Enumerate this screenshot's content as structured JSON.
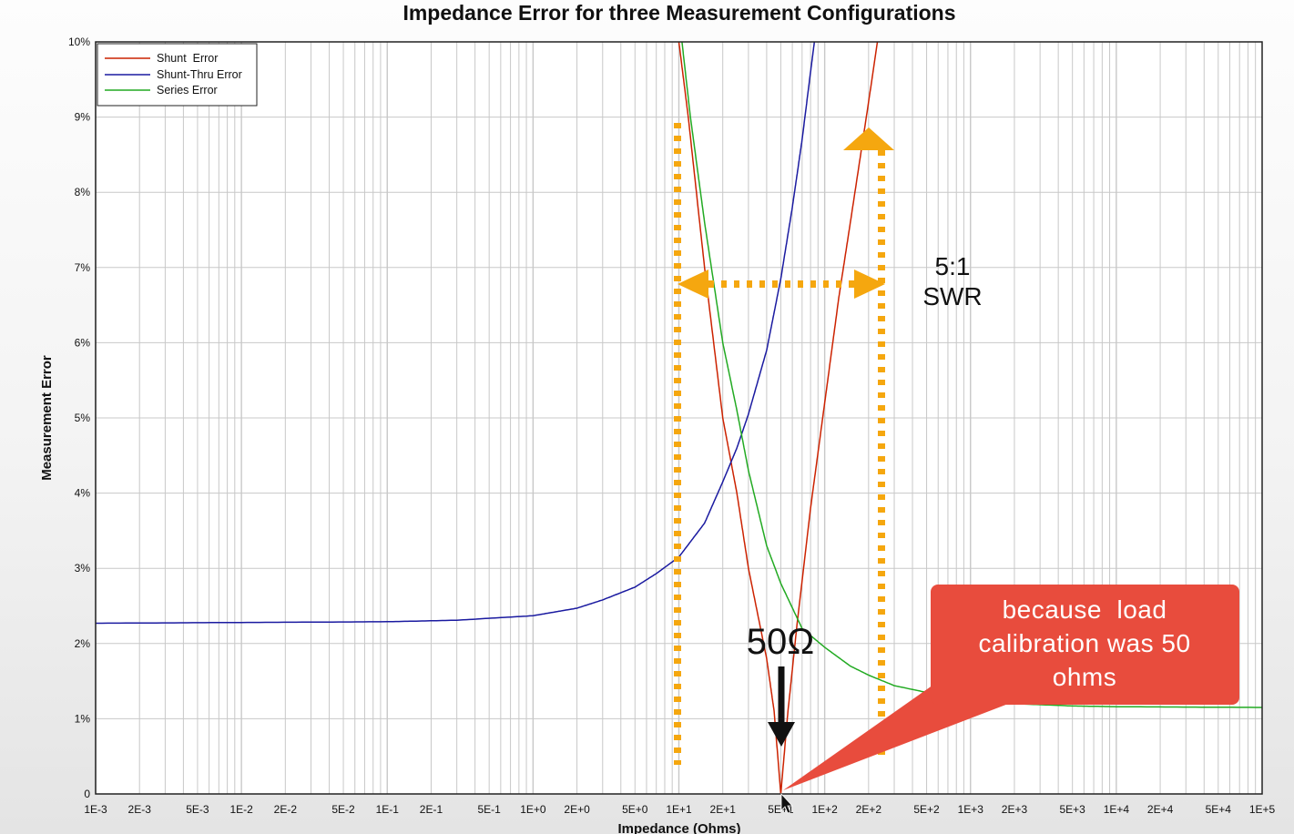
{
  "chart_data": {
    "type": "line",
    "title": "Impedance Error for three Measurement Configurations",
    "xlabel": "Impedance (Ohms)",
    "ylabel": "Measurement Error",
    "x_scale": "log",
    "xlim": [
      0.001,
      100000
    ],
    "ylim": [
      0,
      10
    ],
    "grid": true,
    "legend_position": "top-left",
    "x_tick_labels": [
      "1E-3",
      "2E-3",
      "5E-3",
      "1E-2",
      "2E-2",
      "5E-2",
      "1E-1",
      "2E-1",
      "5E-1",
      "1E+0",
      "2E+0",
      "5E+0",
      "1E+1",
      "2E+1",
      "5E+1",
      "1E+2",
      "2E+2",
      "5E+2",
      "1E+3",
      "2E+3",
      "5E+3",
      "1E+4",
      "2E+4",
      "5E+4",
      "1E+5"
    ],
    "y_tick_labels": [
      "0",
      "1%",
      "2%",
      "3%",
      "4%",
      "5%",
      "6%",
      "7%",
      "8%",
      "9%",
      "10%"
    ],
    "series": [
      {
        "name": "Shunt  Error",
        "color": "#cc2200",
        "points": [
          [
            10,
            10
          ],
          [
            11.6,
            9
          ],
          [
            15,
            7
          ],
          [
            20,
            5
          ],
          [
            25,
            4
          ],
          [
            30,
            3
          ],
          [
            40,
            1.8
          ],
          [
            45,
            1.1
          ],
          [
            50,
            0
          ],
          [
            56,
            1.1
          ],
          [
            65,
            2.3
          ],
          [
            80,
            3.8
          ],
          [
            100,
            5.2
          ],
          [
            125,
            6.6
          ],
          [
            150,
            7.6
          ],
          [
            200,
            9.2
          ],
          [
            230,
            10
          ]
        ]
      },
      {
        "name": "Shunt-Thru Error",
        "color": "#1a1aa0",
        "points": [
          [
            0.001,
            2.27
          ],
          [
            0.01,
            2.28
          ],
          [
            0.1,
            2.29
          ],
          [
            0.3,
            2.31
          ],
          [
            1,
            2.37
          ],
          [
            2,
            2.47
          ],
          [
            3,
            2.58
          ],
          [
            5,
            2.75
          ],
          [
            7,
            2.93
          ],
          [
            10,
            3.15
          ],
          [
            15,
            3.6
          ],
          [
            20,
            4.15
          ],
          [
            25,
            4.6
          ],
          [
            30,
            5.05
          ],
          [
            40,
            5.9
          ],
          [
            50,
            6.85
          ],
          [
            60,
            7.8
          ],
          [
            70,
            8.7
          ],
          [
            80,
            9.6
          ],
          [
            85,
            10
          ]
        ]
      },
      {
        "name": "Series Error",
        "color": "#22aa22",
        "points": [
          [
            10.5,
            10
          ],
          [
            12,
            9
          ],
          [
            15,
            7.6
          ],
          [
            20,
            6
          ],
          [
            25,
            5.1
          ],
          [
            30,
            4.3
          ],
          [
            40,
            3.3
          ],
          [
            50,
            2.8
          ],
          [
            70,
            2.2
          ],
          [
            100,
            1.95
          ],
          [
            150,
            1.7
          ],
          [
            200,
            1.58
          ],
          [
            300,
            1.44
          ],
          [
            500,
            1.35
          ],
          [
            1000,
            1.25
          ],
          [
            2000,
            1.2
          ],
          [
            5000,
            1.17
          ],
          [
            10000,
            1.16
          ],
          [
            100000,
            1.15
          ]
        ]
      }
    ],
    "annotations": {
      "swr_label_line1": "5:1",
      "swr_label_line2": "SWR",
      "ohm_label": "50Ω",
      "callout": [
        "because  load",
        "calibration was 50",
        "ohms"
      ]
    }
  },
  "colors": {
    "annotation_orange": "#f5a70f",
    "callout_red": "#e84c3d",
    "grid": "#c8c8c8",
    "arrow_black": "#111111"
  }
}
